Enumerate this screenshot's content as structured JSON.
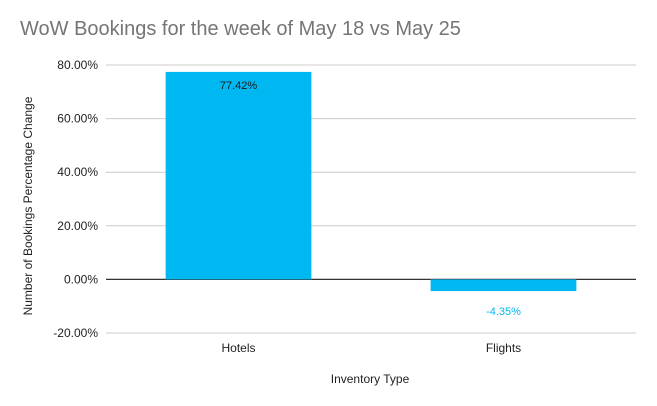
{
  "chart_data": {
    "type": "bar",
    "title": "WoW Bookings for the week of May 18 vs May 25",
    "xlabel": "Inventory Type",
    "ylabel": "Number of Bookings Percentage Change",
    "categories": [
      "Hotels",
      "Flights"
    ],
    "values": [
      77.42,
      -4.35
    ],
    "data_labels": [
      "77.42%",
      "-4.35%"
    ],
    "ylim": [
      -20,
      80
    ],
    "yticks": [
      80,
      60,
      40,
      20,
      0,
      -20
    ],
    "ytick_labels": [
      "80.00%",
      "60.00%",
      "40.00%",
      "20.00%",
      "0.00%",
      "-20.00%"
    ],
    "grid": true,
    "legend": "none",
    "colors": {
      "bar": "#00B8F1",
      "title": "#757575",
      "grid": "#cccccc",
      "zero_line": "#333333",
      "positive_label": "#1a1a1a",
      "negative_label": "#00B8F1"
    }
  }
}
